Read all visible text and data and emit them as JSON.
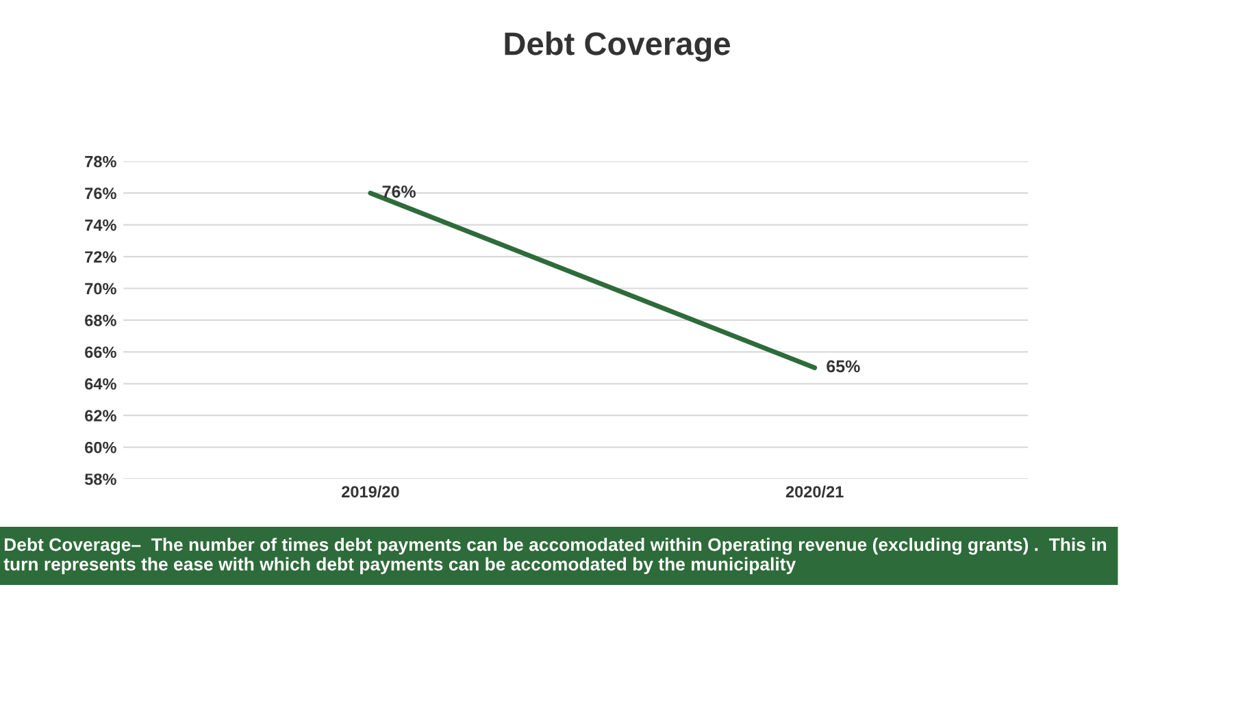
{
  "chart_data": {
    "type": "line",
    "title": "Debt Coverage",
    "categories": [
      "2019/20",
      "2020/21"
    ],
    "series": [
      {
        "color": "#2e6b3a",
        "values": [
          76,
          65
        ],
        "value_labels": [
          "76%",
          "65%"
        ]
      }
    ],
    "ylim": [
      58,
      78
    ],
    "yticks": [
      {
        "value": 58,
        "label": "58%"
      },
      {
        "value": 60,
        "label": "60%"
      },
      {
        "value": 62,
        "label": "62%"
      },
      {
        "value": 64,
        "label": "64%"
      },
      {
        "value": 66,
        "label": "66%"
      },
      {
        "value": 68,
        "label": "68%"
      },
      {
        "value": 70,
        "label": "70%"
      },
      {
        "value": 72,
        "label": "72%"
      },
      {
        "value": 74,
        "label": "74%"
      },
      {
        "value": 76,
        "label": "76%"
      },
      {
        "value": 78,
        "label": "78%"
      }
    ],
    "grid": "y",
    "legend": false,
    "marker": "none",
    "line_style": "solid",
    "annotations": [
      "Debt Coverage–  The number of times debt payments can be accomodated within Operating revenue (excluding grants) .  This in turn represents the ease with which debt payments can be accomodated by the municipality"
    ]
  }
}
